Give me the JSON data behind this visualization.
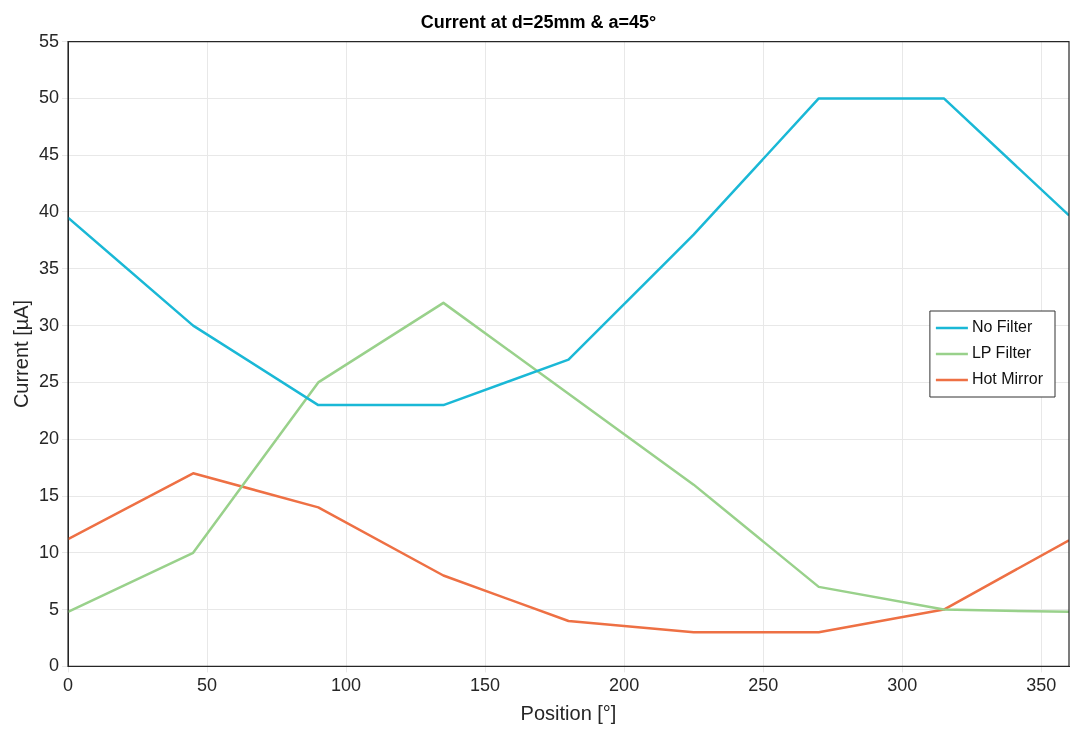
{
  "chart_data": {
    "type": "line",
    "title": "Current at d=25mm & a=45°",
    "xlabel": "Position [°]",
    "ylabel": "Current [µA]",
    "x": [
      0,
      45,
      90,
      135,
      180,
      225,
      270,
      315,
      360
    ],
    "series": [
      {
        "name": "No Filter",
        "color": "#1ab8d6",
        "values": [
          39.5,
          30,
          23,
          23,
          27,
          38,
          50,
          50,
          39.7
        ]
      },
      {
        "name": "LP Filter",
        "color": "#99d18b",
        "values": [
          4.8,
          10,
          25,
          32,
          24,
          16,
          7,
          5,
          4.8
        ]
      },
      {
        "name": "Hot Mirror",
        "color": "#ee7044",
        "values": [
          11.2,
          17,
          14,
          8,
          4,
          3,
          3,
          5,
          11.1
        ]
      }
    ],
    "xlim": [
      0,
      360
    ],
    "xticks": [
      0,
      50,
      100,
      150,
      200,
      250,
      300,
      350
    ],
    "ylim": [
      0,
      55
    ],
    "yticks": [
      0,
      5,
      10,
      15,
      20,
      25,
      30,
      35,
      40,
      45,
      50,
      55
    ],
    "grid": true,
    "legend": "right",
    "marker": "none",
    "line_style": "solid"
  }
}
